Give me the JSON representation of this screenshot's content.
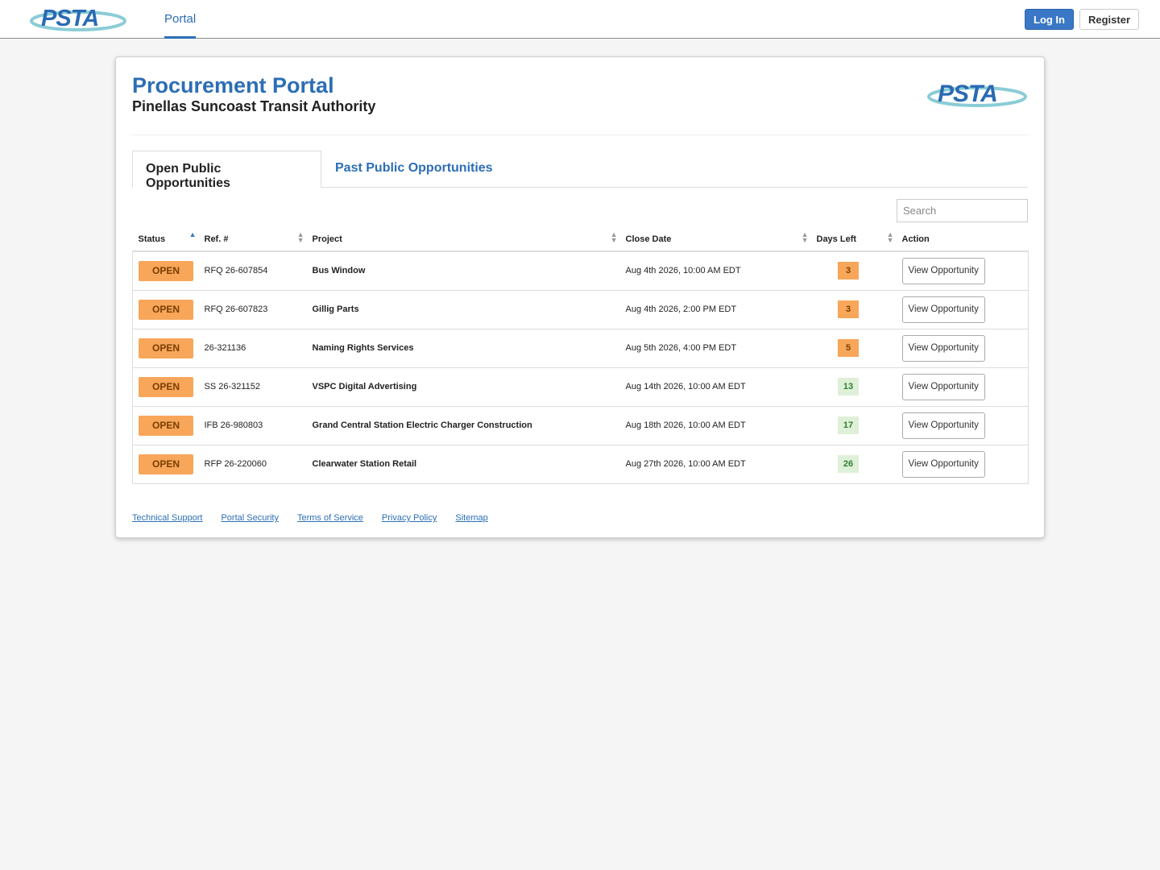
{
  "nav": {
    "logo": "PSTA",
    "links": [
      "Portal"
    ],
    "login": "Log In",
    "register": "Register"
  },
  "header": {
    "title": "Procurement Portal",
    "subtitle": "Pinellas Suncoast Transit Authority",
    "logo": "PSTA"
  },
  "tabs": [
    "Open Public Opportunities",
    "Past Public Opportunities"
  ],
  "search_placeholder": "Search",
  "table": {
    "columns": [
      "Status",
      "Ref. #",
      "Project",
      "Close Date",
      "Days Left",
      "Action"
    ],
    "rows": [
      {
        "status": "OPEN",
        "ref": "RFQ 26-607854",
        "project": "Bus Window",
        "close_date": "Aug 4th 2026, 10:00 AM EDT",
        "days_left": 3,
        "days_left_color": "#f7a65a",
        "action": "View Opportunity"
      },
      {
        "status": "OPEN",
        "ref": "RFQ 26-607823",
        "project": "Gillig Parts",
        "close_date": "Aug 4th 2026, 2:00 PM EDT",
        "days_left": 3,
        "days_left_color": "#f7a65a",
        "action": "View Opportunity"
      },
      {
        "status": "OPEN",
        "ref": "26-321136",
        "project": "Naming Rights Services",
        "close_date": "Aug 5th 2026, 4:00 PM EDT",
        "days_left": 5,
        "days_left_color": "#f7a65a",
        "action": "View Opportunity"
      },
      {
        "status": "OPEN",
        "ref": "SS 26-321152",
        "project": "VSPC Digital Advertising",
        "close_date": "Aug 14th 2026, 10:00 AM EDT",
        "days_left": 13,
        "days_left_color": "#dff0d8",
        "action": "View Opportunity"
      },
      {
        "status": "OPEN",
        "ref": "IFB 26-980803",
        "project": "Grand Central Station Electric Charger Construction",
        "close_date": "Aug 18th 2026, 10:00 AM EDT",
        "days_left": 17,
        "days_left_color": "#dff0d8",
        "action": "View Opportunity"
      },
      {
        "status": "OPEN",
        "ref": "RFP 26-220060",
        "project": "Clearwater Station Retail",
        "close_date": "Aug 27th 2026, 10:00 AM EDT",
        "days_left": 26,
        "days_left_color": "#dff0d8",
        "action": "View Opportunity"
      }
    ]
  },
  "footer_links": [
    "Technical Support",
    "Portal Security",
    "Terms of Service",
    "Privacy Policy",
    "Sitemap"
  ]
}
